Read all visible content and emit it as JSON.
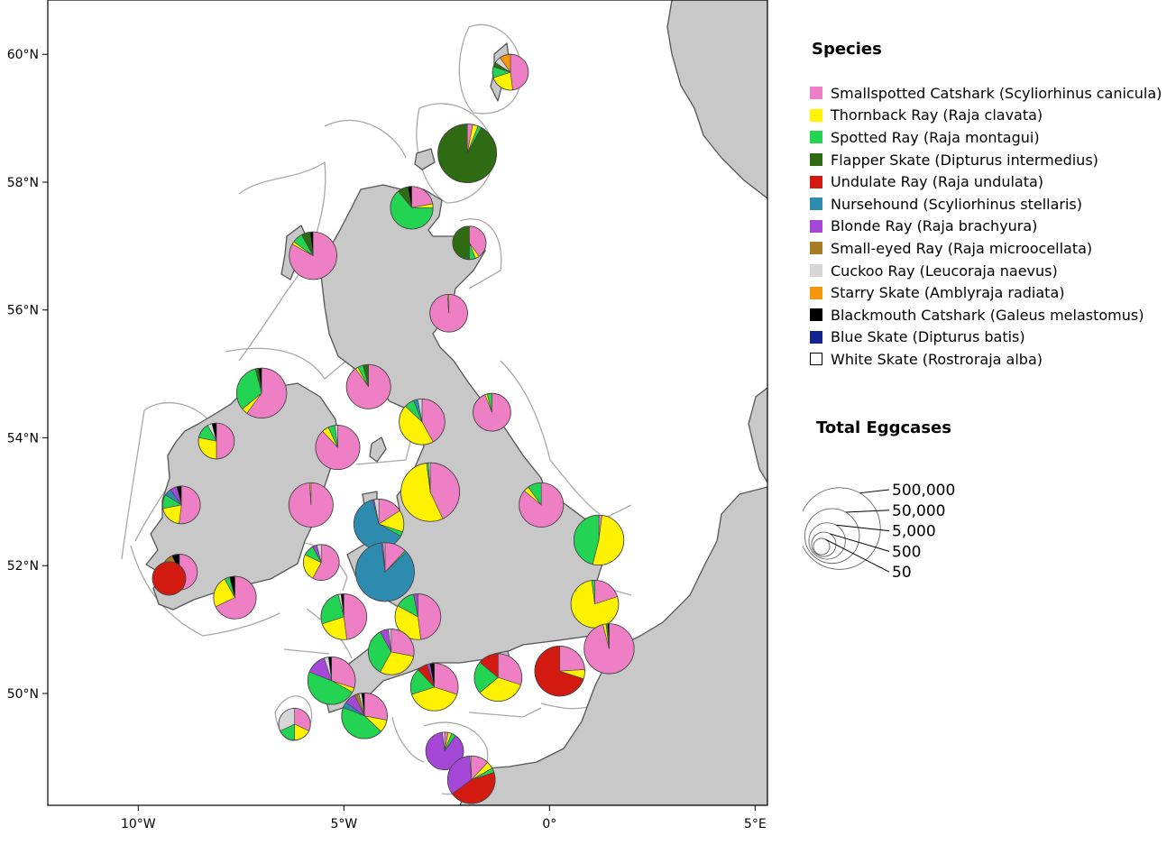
{
  "axes": {
    "x_ticks": [
      {
        "value": -10,
        "label": "10°W"
      },
      {
        "value": -5,
        "label": "5°W"
      },
      {
        "value": 0,
        "label": "0°"
      },
      {
        "value": 5,
        "label": "5°E"
      }
    ],
    "y_ticks": [
      {
        "value": 60,
        "label": "60°N"
      },
      {
        "value": 58,
        "label": "58°N"
      },
      {
        "value": 56,
        "label": "56°N"
      },
      {
        "value": 54,
        "label": "54°N"
      },
      {
        "value": 52,
        "label": "52°N"
      },
      {
        "value": 50,
        "label": "50°N"
      }
    ],
    "lon_range": [
      -12.2,
      5.3
    ],
    "lat_range": [
      48.25,
      60.85
    ]
  },
  "colors": {
    "land": "#c8c8c8",
    "coast": "#555555",
    "sea": "#ffffff",
    "boundary": "#a8a8a8"
  },
  "legend": {
    "title": "Species",
    "items": [
      {
        "label": "Smallspotted Catshark (Scyliorhinus canicula)",
        "color": "#ef7fc4"
      },
      {
        "label": "Thornback Ray (Raja clavata)",
        "color": "#fff200"
      },
      {
        "label": "Spotted Ray (Raja montagui)",
        "color": "#22d452"
      },
      {
        "label": "Flapper Skate (Dipturus intermedius)",
        "color": "#2e6b12"
      },
      {
        "label": "Undulate Ray (Raja undulata)",
        "color": "#d21a10"
      },
      {
        "label": "Nursehound (Scyliorhinus stellaris)",
        "color": "#2e8bb0"
      },
      {
        "label": "Blonde Ray (Raja brachyura)",
        "color": "#a548d8"
      },
      {
        "label": "Small-eyed Ray (Raja microocellata)",
        "color": "#a67c25"
      },
      {
        "label": "Cuckoo Ray (Leucoraja naevus)",
        "color": "#d6d6d6"
      },
      {
        "label": "Starry Skate (Amblyraja radiata)",
        "color": "#f5960e"
      },
      {
        "label": "Blackmouth Catshark (Galeus melastomus)",
        "color": "#000000"
      },
      {
        "label": "Blue Skate (Dipturus batis)",
        "color": "#14248f"
      },
      {
        "label": "White Skate (Rostroraja alba)",
        "color": "#ffffff"
      }
    ]
  },
  "size_legend": {
    "title": "Total Eggcases",
    "entries": [
      {
        "value": 500000,
        "label": "500,000"
      },
      {
        "value": 50000,
        "label": "50,000"
      },
      {
        "value": 5000,
        "label": "5,000"
      },
      {
        "value": 500,
        "label": "500"
      },
      {
        "value": 50,
        "label": "50"
      }
    ]
  },
  "chart_data": {
    "type": "pie-map",
    "x_unit": "longitude",
    "y_unit": "latitude",
    "pies": [
      {
        "lon": -0.95,
        "lat": 59.72,
        "total": 3000,
        "shares": [
          48,
          22,
          10,
          4,
          0,
          0,
          0,
          0,
          6,
          10,
          0,
          0,
          0
        ]
      },
      {
        "lon": -2.0,
        "lat": 58.45,
        "total": 50000,
        "shares": [
          3,
          3,
          2,
          92,
          0,
          0,
          0,
          0,
          0,
          0,
          0,
          0,
          0
        ]
      },
      {
        "lon": -3.35,
        "lat": 57.6,
        "total": 8000,
        "shares": [
          22,
          3,
          64,
          8,
          0,
          0,
          0,
          0,
          0,
          0,
          3,
          0,
          0
        ]
      },
      {
        "lon": -1.95,
        "lat": 57.05,
        "total": 2000,
        "shares": [
          40,
          4,
          6,
          50,
          0,
          0,
          0,
          0,
          0,
          0,
          0,
          0,
          0
        ]
      },
      {
        "lon": -5.75,
        "lat": 56.85,
        "total": 15000,
        "shares": [
          83,
          2,
          7,
          6,
          0,
          0,
          0,
          0,
          0,
          0,
          2,
          0,
          0
        ]
      },
      {
        "lon": -2.45,
        "lat": 55.95,
        "total": 4000,
        "shares": [
          99,
          1,
          0,
          0,
          0,
          0,
          0,
          0,
          0,
          0,
          0,
          0,
          0
        ]
      },
      {
        "lon": -7.0,
        "lat": 54.7,
        "total": 20000,
        "shares": [
          60,
          4,
          32,
          2,
          0,
          0,
          0,
          0,
          0,
          0,
          2,
          0,
          0
        ]
      },
      {
        "lon": -4.4,
        "lat": 54.8,
        "total": 10000,
        "shares": [
          90,
          2,
          4,
          4,
          0,
          0,
          0,
          0,
          0,
          0,
          0,
          0,
          0
        ]
      },
      {
        "lon": -3.1,
        "lat": 54.25,
        "total": 12000,
        "shares": [
          42,
          45,
          7,
          0,
          0,
          3,
          0,
          0,
          3,
          0,
          0,
          0,
          0
        ]
      },
      {
        "lon": -1.4,
        "lat": 54.4,
        "total": 4000,
        "shares": [
          94,
          2,
          4,
          0,
          0,
          0,
          0,
          0,
          0,
          0,
          0,
          0,
          0
        ]
      },
      {
        "lon": -8.1,
        "lat": 53.95,
        "total": 3000,
        "shares": [
          50,
          28,
          14,
          0,
          0,
          0,
          0,
          0,
          4,
          0,
          4,
          0,
          0
        ]
      },
      {
        "lon": -5.15,
        "lat": 53.85,
        "total": 10000,
        "shares": [
          88,
          5,
          5,
          0,
          0,
          0,
          0,
          0,
          2,
          0,
          0,
          0,
          0
        ]
      },
      {
        "lon": -2.9,
        "lat": 53.15,
        "total": 50000,
        "shares": [
          43,
          55,
          1,
          0,
          0,
          0,
          0,
          0,
          1,
          0,
          0,
          0,
          0
        ]
      },
      {
        "lon": -8.95,
        "lat": 52.95,
        "total": 4000,
        "shares": [
          52,
          20,
          12,
          0,
          0,
          6,
          6,
          0,
          0,
          0,
          4,
          0,
          0
        ]
      },
      {
        "lon": -5.8,
        "lat": 52.95,
        "total": 10000,
        "shares": [
          99,
          1,
          0,
          0,
          0,
          0,
          0,
          0,
          0,
          0,
          0,
          0,
          0
        ]
      },
      {
        "lon": -4.15,
        "lat": 52.65,
        "total": 20000,
        "shares": [
          16,
          14,
          3,
          0,
          0,
          63,
          1,
          0,
          3,
          0,
          0,
          0,
          0
        ]
      },
      {
        "lon": -0.2,
        "lat": 52.95,
        "total": 10000,
        "shares": [
          86,
          4,
          10,
          0,
          0,
          0,
          0,
          0,
          0,
          0,
          0,
          0,
          0
        ]
      },
      {
        "lon": 1.2,
        "lat": 52.4,
        "total": 20000,
        "shares": [
          2,
          52,
          46,
          0,
          0,
          0,
          0,
          0,
          0,
          0,
          0,
          0,
          0
        ]
      },
      {
        "lon": -5.55,
        "lat": 52.05,
        "total": 3000,
        "shares": [
          58,
          24,
          10,
          0,
          0,
          0,
          4,
          0,
          4,
          0,
          0,
          0,
          0
        ]
      },
      {
        "lon": -4.0,
        "lat": 51.9,
        "total": 50000,
        "shares": [
          12,
          0,
          1,
          0,
          0,
          85,
          1,
          0,
          1,
          0,
          0,
          0,
          0
        ]
      },
      {
        "lon": -9.0,
        "lat": 51.9,
        "total": 3000,
        "shares": [
          28,
          10,
          8,
          0,
          0,
          2,
          3,
          5,
          0,
          0,
          4,
          0,
          0
        ]
      },
      {
        "lon": -9.25,
        "lat": 51.8,
        "total": 2000,
        "shares": [
          0,
          0,
          0,
          0,
          100,
          0,
          0,
          0,
          0,
          0,
          0,
          0,
          0
        ]
      },
      {
        "lon": -7.65,
        "lat": 51.5,
        "total": 8000,
        "shares": [
          68,
          24,
          4,
          0,
          0,
          0,
          0,
          0,
          0,
          0,
          4,
          0,
          0
        ]
      },
      {
        "lon": 1.1,
        "lat": 51.4,
        "total": 15000,
        "shares": [
          20,
          78,
          2,
          0,
          0,
          0,
          0,
          0,
          0,
          0,
          0,
          0,
          0
        ]
      },
      {
        "lon": -5.0,
        "lat": 51.2,
        "total": 12000,
        "shares": [
          48,
          22,
          26,
          0,
          0,
          0,
          0,
          0,
          2,
          0,
          2,
          0,
          0
        ]
      },
      {
        "lon": -3.2,
        "lat": 51.2,
        "total": 12000,
        "shares": [
          48,
          35,
          14,
          0,
          0,
          0,
          3,
          0,
          0,
          0,
          0,
          0,
          0
        ]
      },
      {
        "lon": 1.45,
        "lat": 50.7,
        "total": 20000,
        "shares": [
          96,
          2,
          1,
          0,
          0,
          0,
          0,
          0,
          0,
          0,
          1,
          0,
          0
        ]
      },
      {
        "lon": -3.85,
        "lat": 50.65,
        "total": 12000,
        "shares": [
          28,
          30,
          34,
          0,
          0,
          0,
          6,
          0,
          2,
          0,
          0,
          0,
          0
        ]
      },
      {
        "lon": -5.3,
        "lat": 50.2,
        "total": 15000,
        "shares": [
          30,
          3,
          48,
          0,
          0,
          0,
          14,
          0,
          3,
          0,
          2,
          0,
          0
        ]
      },
      {
        "lon": -2.8,
        "lat": 50.1,
        "total": 15000,
        "shares": [
          30,
          40,
          18,
          0,
          7,
          0,
          2,
          0,
          0,
          0,
          3,
          0,
          0
        ]
      },
      {
        "lon": -1.25,
        "lat": 50.25,
        "total": 15000,
        "shares": [
          30,
          34,
          22,
          0,
          14,
          0,
          0,
          0,
          0,
          0,
          0,
          0,
          0
        ]
      },
      {
        "lon": 0.25,
        "lat": 50.35,
        "total": 20000,
        "shares": [
          24,
          6,
          0,
          0,
          70,
          0,
          0,
          0,
          0,
          0,
          0,
          0,
          0
        ]
      },
      {
        "lon": -4.5,
        "lat": 49.65,
        "total": 12000,
        "shares": [
          28,
          9,
          44,
          0,
          0,
          4,
          8,
          3,
          2,
          0,
          2,
          0,
          0
        ]
      },
      {
        "lon": -6.2,
        "lat": 49.52,
        "total": 1500,
        "shares": [
          32,
          18,
          18,
          0,
          0,
          0,
          0,
          0,
          32,
          0,
          0,
          0,
          0
        ]
      },
      {
        "lon": -2.55,
        "lat": 49.1,
        "total": 4000,
        "shares": [
          3,
          3,
          4,
          0,
          0,
          0,
          88,
          0,
          2,
          0,
          0,
          0,
          0
        ]
      },
      {
        "lon": -1.9,
        "lat": 48.65,
        "total": 15000,
        "shares": [
          12,
          5,
          3,
          0,
          45,
          0,
          34,
          0,
          1,
          0,
          0,
          0,
          0
        ]
      }
    ]
  }
}
